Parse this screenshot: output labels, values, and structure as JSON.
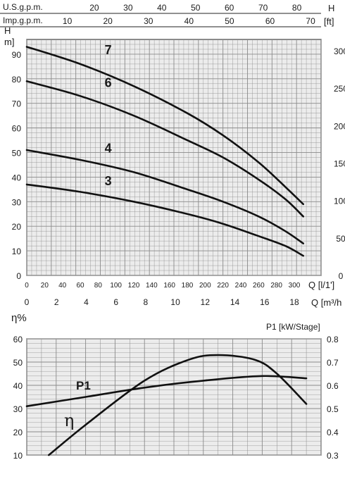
{
  "chart_data": [
    {
      "type": "line",
      "top_scales": {
        "usgpm_label": "U.S.g.p.m.",
        "usgpm_ticks": [
          "20",
          "30",
          "40",
          "50",
          "60",
          "70",
          "80"
        ],
        "usgpm_values": [
          20,
          30,
          40,
          50,
          60,
          70,
          80
        ],
        "impgpm_label": "Imp.g.p.m.",
        "impgpm_ticks": [
          "10",
          "20",
          "30",
          "40",
          "50",
          "60",
          "70"
        ],
        "impgpm_values": [
          10,
          20,
          30,
          40,
          50,
          60,
          70
        ]
      },
      "ylabel_left": "H",
      "ylabel_left_unit": "m]",
      "ylabel_right": "H",
      "ylabel_right_unit": "[ft]",
      "ylim": [
        0,
        96
      ],
      "yticks": [
        0,
        10,
        20,
        30,
        40,
        50,
        60,
        70,
        80,
        90
      ],
      "right_ticks_ft": [
        0,
        50,
        100,
        150,
        200,
        250,
        300
      ],
      "xlabel_lmin": "Q [l/1']",
      "xlabel_m3h": "Q [m³/h",
      "xlim_lmin": [
        0,
        330
      ],
      "xticks_lmin": [
        0,
        20,
        40,
        60,
        80,
        100,
        120,
        140,
        160,
        180,
        200,
        220,
        240,
        260,
        280,
        300
      ],
      "xticks_m3h": [
        0,
        2,
        4,
        6,
        8,
        10,
        12,
        14,
        16,
        18
      ],
      "grid": true,
      "series": [
        {
          "name": "7",
          "x": [
            0,
            60,
            120,
            180,
            220,
            260,
            290,
            310
          ],
          "y": [
            93,
            86,
            77,
            66,
            57,
            46,
            36,
            29
          ]
        },
        {
          "name": "6",
          "x": [
            0,
            60,
            120,
            180,
            220,
            260,
            290,
            310
          ],
          "y": [
            79,
            73,
            65,
            55,
            48,
            39,
            31,
            24
          ]
        },
        {
          "name": "4",
          "x": [
            0,
            60,
            120,
            180,
            220,
            260,
            290,
            310
          ],
          "y": [
            51,
            47,
            42,
            35,
            30,
            24,
            18,
            13
          ]
        },
        {
          "name": "3",
          "x": [
            0,
            60,
            120,
            180,
            220,
            260,
            290,
            310
          ],
          "y": [
            37,
            34,
            30,
            25,
            21,
            16,
            12,
            8
          ]
        }
      ]
    },
    {
      "type": "line",
      "ylabel_left": "η%",
      "ylabel_right": "P1 [kW/Stage]",
      "xlim_m3h": [
        0,
        20
      ],
      "ylim_left": [
        10,
        60
      ],
      "yticks_left": [
        10,
        20,
        30,
        40,
        50,
        60
      ],
      "ylim_right": [
        0.3,
        0.8
      ],
      "yticks_right": [
        "0.3",
        "0.4",
        "0.5",
        "0.6",
        "0.7",
        "0.8"
      ],
      "yticks_right_values": [
        0.3,
        0.4,
        0.5,
        0.6,
        0.7,
        0.8
      ],
      "grid": true,
      "series": [
        {
          "name": "P1",
          "axis": "right",
          "x": [
            0,
            4,
            8,
            12,
            16,
            19
          ],
          "y": [
            0.51,
            0.55,
            0.59,
            0.62,
            0.64,
            0.63
          ]
        },
        {
          "name": "η",
          "axis": "left",
          "x": [
            1.5,
            4,
            8,
            11,
            13,
            15.5,
            17,
            19
          ],
          "y": [
            10,
            23,
            42,
            51,
            53,
            51,
            45,
            32
          ]
        }
      ]
    }
  ]
}
